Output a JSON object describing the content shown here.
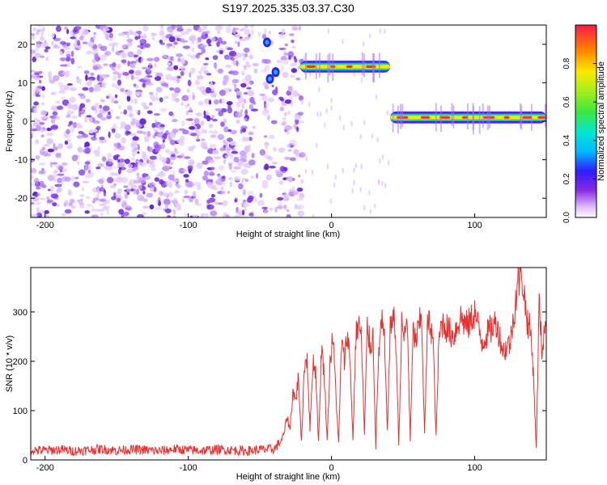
{
  "title": "S197.2025.335.03.37.C30",
  "chart_data": [
    {
      "type": "heatmap",
      "name": "spectrogram",
      "xlabel": "Height of straight line (km)",
      "ylabel": "Frequency (Hz)",
      "xlim": [
        -210,
        150
      ],
      "ylim": [
        -25,
        25
      ],
      "xticks": [
        -200,
        -100,
        0,
        100
      ],
      "xtick_labels": [
        "-200",
        "-100",
        "0",
        "100"
      ],
      "yticks": [
        -20,
        -10,
        0,
        10,
        20
      ],
      "ytick_labels": [
        "-20",
        "-10",
        "0",
        "10",
        "20"
      ],
      "noise_region_x": [
        -210,
        -20
      ],
      "bright_segments": [
        {
          "x0": -22,
          "x1": 41,
          "freq": 14.2,
          "amplitude": 0.95
        },
        {
          "x0": 41,
          "x1": 150,
          "freq": 1.0,
          "amplitude": 0.95
        }
      ],
      "colorbar": {
        "label": "Normalized spectral amplitude",
        "range": [
          0,
          1
        ],
        "ticks": [
          0,
          0.2,
          0.4,
          0.6,
          0.8
        ],
        "tick_labels": [
          "0.0",
          "0.2",
          "0.4",
          "0.6",
          "0.8"
        ]
      }
    },
    {
      "type": "line",
      "name": "snr",
      "xlabel": "Height of straight line (km)",
      "ylabel": "SNR (10 * v/v)",
      "xlim": [
        -210,
        150
      ],
      "ylim": [
        0,
        390
      ],
      "xticks": [
        -200,
        -100,
        0,
        100
      ],
      "xtick_labels": [
        "-200",
        "-100",
        "0",
        "100"
      ],
      "yticks": [
        0,
        100,
        200,
        300
      ],
      "ytick_labels": [
        "0",
        "100",
        "200",
        "300"
      ],
      "series": [
        {
          "name": "SNR",
          "color": "#e8312f",
          "x": [
            -210,
            -200,
            -190,
            -180,
            -170,
            -160,
            -150,
            -140,
            -130,
            -120,
            -110,
            -100,
            -90,
            -80,
            -70,
            -60,
            -50,
            -40,
            -35,
            -33,
            -31,
            -29,
            -27,
            -25,
            -23,
            -21,
            -19,
            -17,
            -15,
            -13,
            -11,
            -9,
            -7,
            -5,
            -3,
            -1,
            1,
            3,
            5,
            7,
            9,
            11,
            13,
            15,
            17,
            19,
            21,
            23,
            25,
            27,
            29,
            31,
            33,
            35,
            37,
            39,
            41,
            43,
            45,
            47,
            49,
            51,
            53,
            55,
            57,
            59,
            61,
            63,
            65,
            67,
            69,
            71,
            73,
            75,
            77,
            80,
            85,
            90,
            95,
            100,
            105,
            110,
            115,
            120,
            125,
            130,
            133,
            135,
            137,
            139,
            141,
            143,
            145,
            147,
            149,
            150
          ],
          "y": [
            20,
            19,
            21,
            18,
            20,
            22,
            19,
            21,
            20,
            18,
            22,
            20,
            19,
            21,
            20,
            18,
            21,
            22,
            40,
            55,
            90,
            60,
            140,
            120,
            170,
            30,
            190,
            210,
            60,
            200,
            180,
            30,
            230,
            170,
            40,
            200,
            250,
            140,
            30,
            240,
            200,
            260,
            200,
            40,
            250,
            280,
            240,
            50,
            270,
            230,
            250,
            30,
            220,
            280,
            240,
            60,
            260,
            300,
            240,
            30,
            270,
            250,
            280,
            40,
            260,
            240,
            270,
            290,
            50,
            270,
            280,
            240,
            45,
            240,
            280,
            270,
            250,
            290,
            270,
            300,
            240,
            260,
            280,
            220,
            240,
            360,
            380,
            320,
            280,
            260,
            180,
            20,
            320,
            220,
            280,
            250
          ]
        }
      ]
    }
  ]
}
